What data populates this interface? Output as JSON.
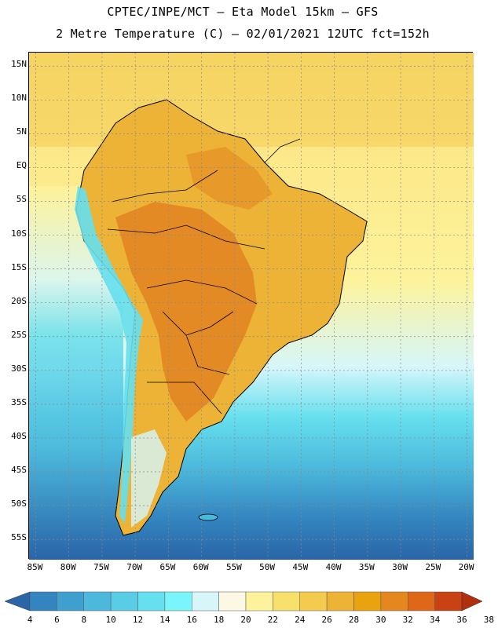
{
  "header": {
    "line1": "CPTEC/INPE/MCT –  Eta Model 15km – GFS",
    "line2": "2 Metre Temperature (C) – 02/01/2021 12UTC fct=152h"
  },
  "map": {
    "lat_labels": [
      "15N",
      "10N",
      "5N",
      "EQ",
      "5S",
      "10S",
      "15S",
      "20S",
      "25S",
      "30S",
      "35S",
      "40S",
      "45S",
      "50S",
      "55S"
    ],
    "lon_labels": [
      "85W",
      "80W",
      "75W",
      "70W",
      "65W",
      "60W",
      "55W",
      "50W",
      "45W",
      "40W",
      "35W",
      "30W",
      "25W",
      "20W"
    ],
    "lon_range": [
      -86,
      -19
    ],
    "lat_range": [
      -58,
      17
    ]
  },
  "colorbar": {
    "labels": [
      "4",
      "6",
      "8",
      "10",
      "12",
      "14",
      "16",
      "18",
      "20",
      "22",
      "24",
      "26",
      "28",
      "30",
      "32",
      "34",
      "36",
      "38"
    ],
    "colors": [
      "#2a65a8",
      "#3384bf",
      "#3fa0cf",
      "#4cb8db",
      "#58cde5",
      "#66dfee",
      "#7af5fb",
      "#d6f6fa",
      "#fdf8e3",
      "#fdf39c",
      "#f7e06b",
      "#f3cb4e",
      "#ecb337",
      "#e8a30f",
      "#e5871f",
      "#df6818",
      "#c84213",
      "#b12f0c"
    ]
  }
}
